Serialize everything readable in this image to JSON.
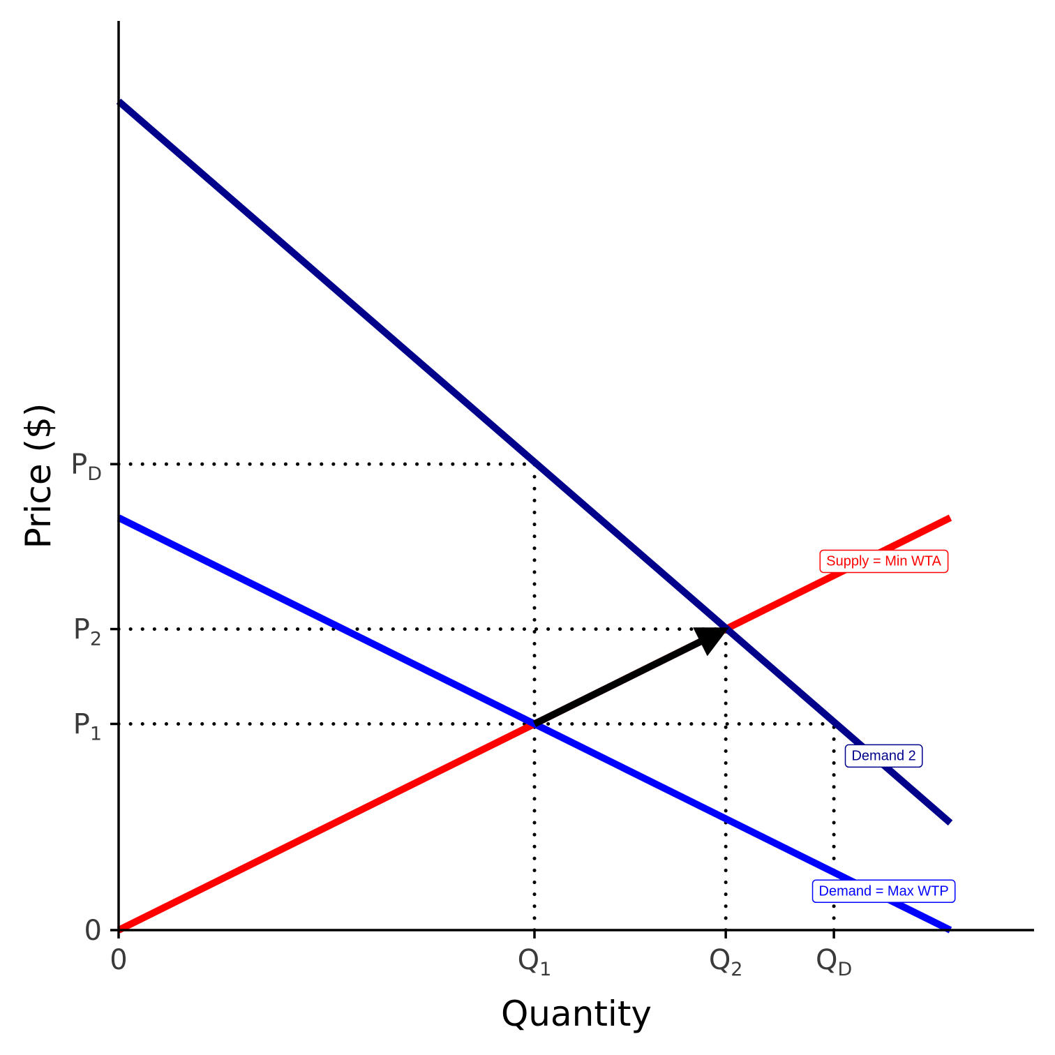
{
  "chart_data": {
    "type": "line",
    "xlabel": "Quantity",
    "ylabel": "Price ($)",
    "xlim": [
      0,
      11
    ],
    "ylim": [
      0,
      10.5
    ],
    "grid": false,
    "legend": "none",
    "x_ticks": [
      {
        "value": 0,
        "label": "0",
        "sub": ""
      },
      {
        "value": 5,
        "label": "Q",
        "sub": "1"
      },
      {
        "value": 7.3,
        "label": "Q",
        "sub": "2"
      },
      {
        "value": 8.6,
        "label": "Q",
        "sub": "D"
      }
    ],
    "y_ticks": [
      {
        "value": 0,
        "label": "0",
        "sub": ""
      },
      {
        "value": 2.5,
        "label": "P",
        "sub": "1"
      },
      {
        "value": 3.65,
        "label": "P",
        "sub": "2"
      },
      {
        "value": 5.65,
        "label": "P",
        "sub": "D"
      }
    ],
    "series": [
      {
        "name": "Supply = Min WTA",
        "color": "#ff0000",
        "label_at": [
          9.2,
          4.48
        ],
        "x": [
          0,
          10
        ],
        "y": [
          0,
          5
        ]
      },
      {
        "name": "Demand = Max WTP",
        "color": "#0000ff",
        "label_at": [
          9.2,
          0.48
        ],
        "x": [
          0,
          10
        ],
        "y": [
          5,
          0
        ]
      },
      {
        "name": "Demand 2",
        "color": "#00008b",
        "label_at": [
          9.2,
          2.12
        ],
        "x": [
          0,
          10
        ],
        "y": [
          10.05,
          1.3
        ]
      }
    ],
    "guides": [
      {
        "x": [
          0,
          5
        ],
        "y": [
          5.65,
          5.65
        ]
      },
      {
        "x": [
          5,
          5
        ],
        "y": [
          0,
          5.65
        ]
      },
      {
        "x": [
          0,
          7.3
        ],
        "y": [
          3.65,
          3.65
        ]
      },
      {
        "x": [
          7.3,
          7.3
        ],
        "y": [
          0,
          3.65
        ]
      },
      {
        "x": [
          0,
          8.6
        ],
        "y": [
          2.5,
          2.5
        ]
      },
      {
        "x": [
          8.6,
          8.6
        ],
        "y": [
          0,
          2.5
        ]
      }
    ],
    "arrow": {
      "from": [
        5,
        2.5
      ],
      "to": [
        7.3,
        3.65
      ],
      "color": "#000000"
    }
  }
}
